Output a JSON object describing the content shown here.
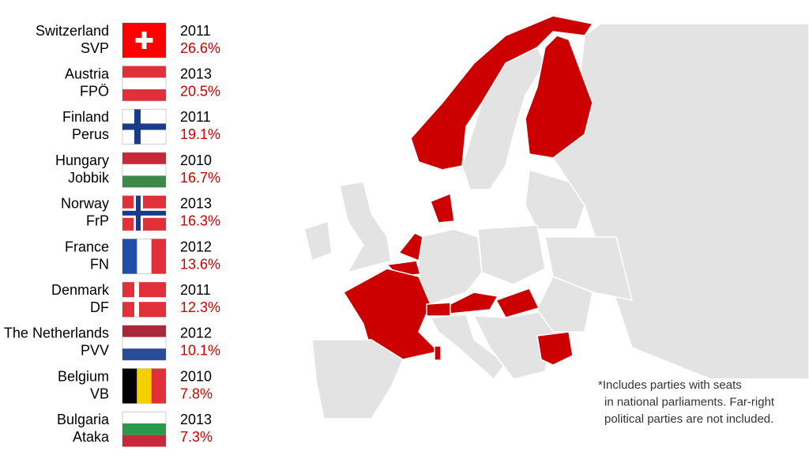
{
  "entries": [
    {
      "country": "Switzerland",
      "party": "SVP",
      "year": "2011",
      "share": "26.6%"
    },
    {
      "country": "Austria",
      "party": "FPÖ",
      "year": "2013",
      "share": "20.5%"
    },
    {
      "country": "Finland",
      "party": "Perus",
      "year": "2011",
      "share": "19.1%"
    },
    {
      "country": "Hungary",
      "party": "Jobbik",
      "year": "2010",
      "share": "16.7%"
    },
    {
      "country": "Norway",
      "party": "FrP",
      "year": "2013",
      "share": "16.3%"
    },
    {
      "country": "France",
      "party": "FN",
      "year": "2012",
      "share": "13.6%"
    },
    {
      "country": "Denmark",
      "party": "DF",
      "year": "2011",
      "share": "12.3%"
    },
    {
      "country": "The Netherlands",
      "party": "PVV",
      "year": "2012",
      "share": "10.1%"
    },
    {
      "country": "Belgium",
      "party": "VB",
      "year": "2010",
      "share": "7.8%"
    },
    {
      "country": "Bulgaria",
      "party": "Ataka",
      "year": "2013",
      "share": "7.3%"
    }
  ],
  "footnote": [
    "*Includes parties with seats",
    "in national parliaments. Far-right",
    "political parties are not included."
  ]
}
